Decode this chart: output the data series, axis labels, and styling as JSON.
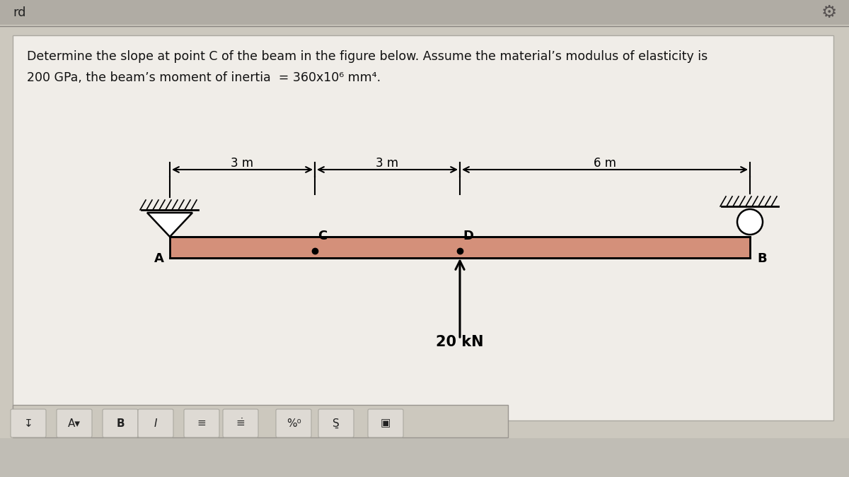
{
  "bg_color": "#c0bdb5",
  "panel_bg": "#ccc8be",
  "white_panel": "#f0ede8",
  "beam_fill": "#d4907a",
  "beam_edge": "#000000",
  "title1": "Determine the slope at point C of the beam in the figure below. Assume the material’s modulus of elasticity is",
  "title2": "200 GPa, the beam’s moment of inertia  = 360x10⁶ mm⁴.",
  "load_label": "20 kN",
  "lbl_A": "A",
  "lbl_B": "B",
  "lbl_C": "C",
  "lbl_D": "D",
  "dim1": "3 m",
  "dim2": "3 m",
  "dim3": "6 m",
  "rd": "rd",
  "header_bg": "#b0aca4",
  "toolbar_bg": "#ccc8be",
  "btn_bg": "#dedad4",
  "total_m": 12.0,
  "ac_m": 3.0,
  "cd_m": 3.0,
  "db_m": 6.0
}
